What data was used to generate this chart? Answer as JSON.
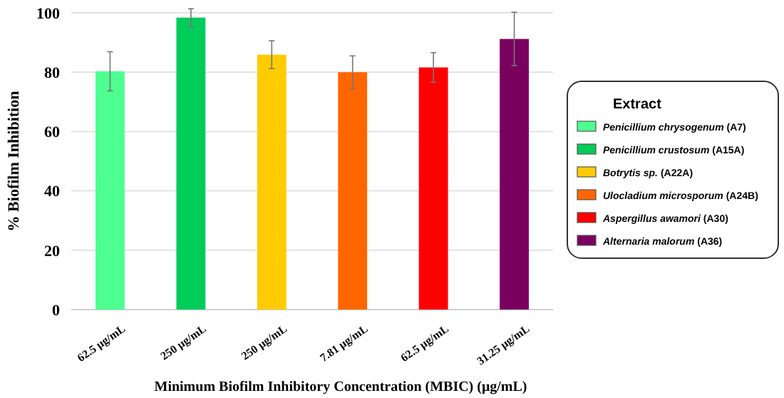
{
  "chart_data": {
    "type": "bar",
    "xlabel": "Minimum Biofilm Inhibitory Concentration (MBIC) (μg/mL)",
    "ylabel": "% Biofilm Inhibition",
    "legend_title": "Extract",
    "categories": [
      "62.5 μg/mL",
      "250 μg/mL",
      "250 μg/mL",
      "7.81 μg/mL",
      "62.5 μg/mL",
      "31.25 μg/mL"
    ],
    "series": [
      {
        "name": "Penicillium chrysogenum (A7)",
        "color": "#4dff91",
        "values": [
          80.3,
          null,
          null,
          null,
          null,
          null
        ],
        "errors": [
          6.6,
          null,
          null,
          null,
          null,
          null
        ]
      },
      {
        "name": "Penicillium crustosum (A15A)",
        "color": "#00cc5a",
        "values": [
          null,
          98.4,
          null,
          null,
          null,
          null
        ],
        "errors": [
          null,
          3,
          null,
          null,
          null,
          null
        ]
      },
      {
        "name": "Botrytis sp. (A22A)",
        "color": "#ffcc00",
        "values": [
          null,
          null,
          85.9,
          null,
          null,
          null
        ],
        "errors": [
          null,
          null,
          4.7,
          null,
          null,
          null
        ]
      },
      {
        "name": "Ulocladium microsporum (A24B)",
        "color": "#ff6600",
        "values": [
          null,
          null,
          null,
          80,
          null,
          null
        ],
        "errors": [
          null,
          null,
          null,
          5.5,
          null,
          null
        ]
      },
      {
        "name": "Aspergillus awamori (A30)",
        "color": "#ff0000",
        "values": [
          null,
          null,
          null,
          null,
          81.6,
          null
        ],
        "errors": [
          null,
          null,
          null,
          null,
          5,
          null
        ]
      },
      {
        "name": "Alternaria malorum (A36)",
        "color": "#7a0060",
        "values": [
          null,
          null,
          null,
          null,
          null,
          91.2
        ],
        "errors": [
          null,
          null,
          null,
          null,
          null,
          9
        ]
      }
    ],
    "ylim": [
      0,
      100
    ],
    "yticks": [
      0,
      20,
      40,
      60,
      80,
      100
    ],
    "grid": "y",
    "legend": "right"
  }
}
